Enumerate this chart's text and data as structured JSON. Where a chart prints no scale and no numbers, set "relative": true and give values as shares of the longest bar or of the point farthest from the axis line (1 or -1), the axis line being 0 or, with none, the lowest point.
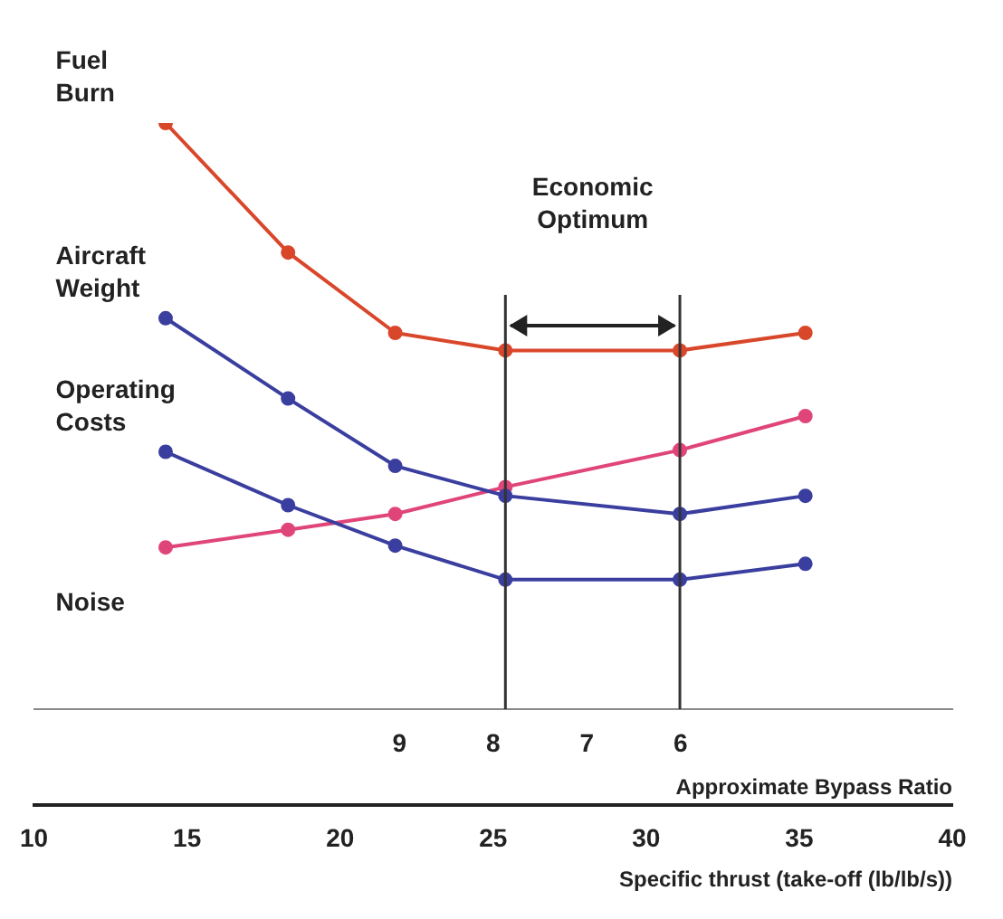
{
  "chart_data": {
    "type": "line",
    "relative": true,
    "x": [
      14.3,
      18.3,
      21.8,
      25.4,
      31.1,
      35.2
    ],
    "series": [
      {
        "name": "Fuel Burn",
        "color": "#d9472b",
        "values": [
          1,
          0.779,
          0.642,
          0.612,
          0.612,
          0.642
        ]
      },
      {
        "name": "Aircraft Weight",
        "color": "#3a3e9e",
        "values": [
          0.667,
          0.53,
          0.415,
          0.364,
          0.333,
          0.364
        ]
      },
      {
        "name": "Operating Costs",
        "color": "#3a3e9e",
        "values": [
          0.439,
          0.348,
          0.279,
          0.221,
          0.221,
          0.248
        ]
      },
      {
        "name": "Noise",
        "color": "#e0457a",
        "values": [
          0.276,
          0.306,
          0.333,
          0.379,
          0.442,
          0.5
        ]
      }
    ],
    "xlim": [
      10,
      40
    ],
    "xticks": [
      10,
      15,
      20,
      25,
      30,
      35,
      40
    ],
    "x2lim": [
      12.9,
      3.1
    ],
    "x2ticks": [
      9,
      8,
      7,
      6
    ],
    "xlabel": "Specific thrust (take-off (lb/lb/s))",
    "x2label": "Approximate Bypass Ratio",
    "ref_lines": [
      {
        "axis": "x",
        "value": 25.4,
        "color": "#333333"
      },
      {
        "axis": "x",
        "value": 31.1,
        "color": "#333333"
      }
    ],
    "annotations": [
      "Economic Optimum"
    ],
    "marker": "circle",
    "line_style": "solid",
    "grid": false,
    "legend": false
  }
}
